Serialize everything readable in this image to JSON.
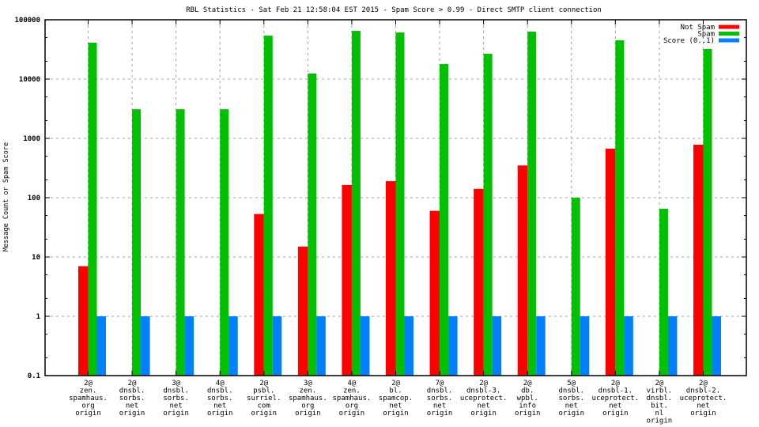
{
  "chart_data": {
    "type": "bar",
    "title": "RBL Statistics - Sat Feb 21 12:58:04 EST 2015 - Spam Score > 0.99 - Direct SMTP client connection",
    "xlabel": "",
    "ylabel": "Message Count or Spam Score",
    "yscale": "log",
    "ylim": [
      0.1,
      100000
    ],
    "yticks": [
      "0.1",
      "1",
      "10",
      "100",
      "1000",
      "10000",
      "100000"
    ],
    "ytick_values": [
      0.1,
      1,
      10,
      100,
      1000,
      10000,
      100000
    ],
    "grid": true,
    "legend_position": "top-right",
    "categories": [
      [
        "2@",
        "zen.",
        "spamhaus.",
        "org",
        "origin"
      ],
      [
        "2@",
        "dnsbl.",
        "sorbs.",
        "net",
        "origin"
      ],
      [
        "3@",
        "dnsbl.",
        "sorbs.",
        "net",
        "origin"
      ],
      [
        "4@",
        "dnsbl.",
        "sorbs.",
        "net",
        "origin"
      ],
      [
        "2@",
        "psbl.",
        "surriel.",
        "com",
        "origin"
      ],
      [
        "3@",
        "zen.",
        "spamhaus.",
        "org",
        "origin"
      ],
      [
        "4@",
        "zen.",
        "spamhaus.",
        "org",
        "origin"
      ],
      [
        "2@",
        "bl.",
        "spamcop.",
        "net",
        "origin"
      ],
      [
        "7@",
        "dnsbl.",
        "sorbs.",
        "net",
        "origin"
      ],
      [
        "2@",
        "dnsbl-3.",
        "uceprotect.",
        "net",
        "origin"
      ],
      [
        "2@",
        "db.",
        "wpbl.",
        "info",
        "origin"
      ],
      [
        "5@",
        "dnsbl.",
        "sorbs.",
        "net",
        "origin"
      ],
      [
        "2@",
        "dnsbl-1.",
        "uceprotect.",
        "net",
        "origin"
      ],
      [
        "2@",
        "virbl.",
        "dnsbl.",
        "bit.",
        "nl",
        "origin"
      ],
      [
        "2@",
        "dnsbl-2.",
        "uceprotect.",
        "net",
        "origin"
      ]
    ],
    "series": [
      {
        "name": "Not Spam",
        "color": "#ff0000",
        "values": [
          7,
          null,
          null,
          null,
          53,
          15,
          164,
          190,
          60,
          141,
          349,
          null,
          671,
          null,
          782
        ]
      },
      {
        "name": "Spam",
        "color": "#00c000",
        "values": [
          41000,
          3100,
          3100,
          3100,
          54000,
          12400,
          65000,
          61000,
          17900,
          26700,
          63000,
          100,
          45000,
          65,
          32100
        ]
      },
      {
        "name": "Score (0..1)",
        "color": "#0080ff",
        "values": [
          1,
          1,
          1,
          1,
          1,
          1,
          1,
          1,
          1,
          1,
          1,
          1,
          1,
          1,
          1
        ]
      }
    ]
  }
}
